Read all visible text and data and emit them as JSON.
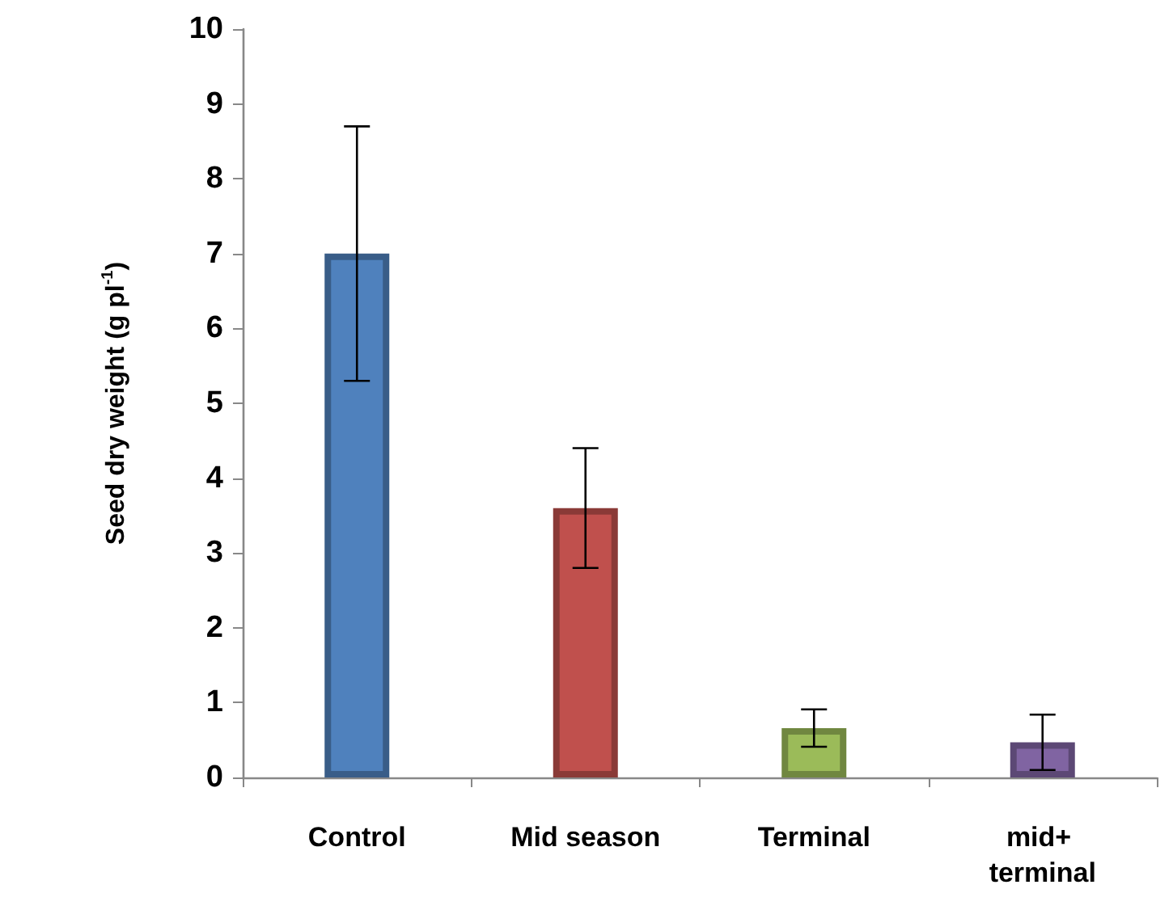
{
  "chart_data": {
    "type": "bar",
    "ylabel": "Seed dry weight (g pl$^{-1}$)",
    "categories": [
      "Control",
      "Mid season",
      "Terminal",
      "mid+ terminal"
    ],
    "values": [
      7.0,
      3.6,
      0.66,
      0.47
    ],
    "errors": [
      1.7,
      0.8,
      0.25,
      0.37
    ],
    "colors": [
      "#4f81bd",
      "#c0504d",
      "#9bbb59",
      "#8064a2"
    ],
    "ylim": [
      0,
      10
    ],
    "yticks": [
      0,
      1,
      2,
      3,
      4,
      5,
      6,
      7,
      8,
      9,
      10
    ],
    "grid": false
  }
}
